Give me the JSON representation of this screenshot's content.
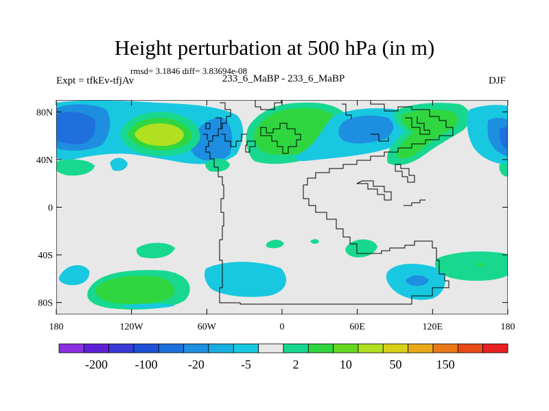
{
  "title": "Height perturbation at 500 hPa (in m)",
  "stats": "rmsd= 3.1846 diff= 3.83694e-08",
  "experiment": "Expt = tfkEv-tfjAv",
  "center_label": "233_6_MaBP - 233_6_MaBP",
  "season": "DJF",
  "map": {
    "lon_range": [
      -180,
      180
    ],
    "lat_range": [
      -90,
      90
    ],
    "lat_ticks": [
      {
        "value": 80,
        "label": "80N"
      },
      {
        "value": 40,
        "label": "40N"
      },
      {
        "value": 0,
        "label": "0"
      },
      {
        "value": -40,
        "label": "40S"
      },
      {
        "value": -80,
        "label": "80S"
      }
    ],
    "lon_ticks": [
      {
        "value": -180,
        "label": "180"
      },
      {
        "value": -120,
        "label": "120W"
      },
      {
        "value": -60,
        "label": "60W"
      },
      {
        "value": 0,
        "label": "0"
      },
      {
        "value": 60,
        "label": "60E"
      },
      {
        "value": 120,
        "label": "120E"
      },
      {
        "value": 180,
        "label": "180"
      }
    ],
    "background_color": "#e8e8e8"
  },
  "colorbar": {
    "colors": [
      "#8b2fe0",
      "#5f1fd6",
      "#3a3ad6",
      "#1f50d8",
      "#1f70dc",
      "#1e8ee0",
      "#1aaee0",
      "#18c8e0",
      "#e8e8e8",
      "#18d890",
      "#30d640",
      "#66d820",
      "#b0e020",
      "#d8d018",
      "#e8a818",
      "#e87818",
      "#e84a18",
      "#e82020"
    ],
    "labels": [
      "-200",
      "-100",
      "-20",
      "-5",
      "2",
      "10",
      "50",
      "150"
    ]
  }
}
